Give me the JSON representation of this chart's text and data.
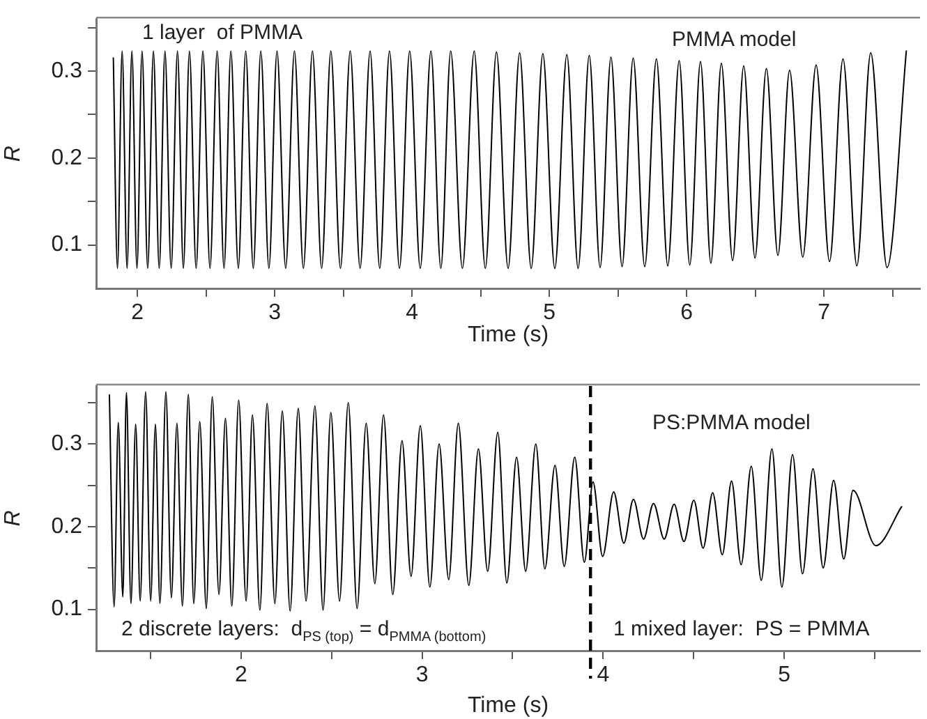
{
  "chart_data": [
    {
      "type": "line",
      "xlabel": "Time (s)",
      "ylabel": "R",
      "color": "#000000",
      "marker": "none",
      "line_style": "solid",
      "annotations": [
        "1 layer  of PMMA",
        "PMMA model"
      ],
      "xlim": [
        1.7,
        7.7
      ],
      "ylim": [
        0.05,
        0.36
      ],
      "xticks": [
        2,
        {
          "value": 2.5,
          "label": null
        },
        3,
        {
          "value": 3.5,
          "label": null
        },
        4,
        {
          "value": 4.5,
          "label": null
        },
        5,
        {
          "value": 5.5,
          "label": null
        },
        6,
        {
          "value": 6.5,
          "label": null
        },
        7,
        {
          "value": 7.5,
          "label": null
        }
      ],
      "yticks": [
        0.1,
        {
          "value": 0.15,
          "label": null
        },
        0.2,
        {
          "value": 0.25,
          "label": null
        },
        0.3,
        {
          "value": 0.35,
          "label": null
        }
      ],
      "x": [
        1.825,
        1.855,
        1.889,
        1.925,
        1.96,
        1.997,
        2.034,
        2.075,
        2.117,
        2.159,
        2.201,
        2.246,
        2.292,
        2.335,
        2.379,
        2.428,
        2.477,
        2.529,
        2.581,
        2.631,
        2.681,
        2.735,
        2.789,
        2.844,
        2.899,
        2.958,
        3.017,
        3.08,
        3.144,
        3.209,
        3.275,
        3.342,
        3.409,
        3.479,
        3.55,
        3.622,
        3.695,
        3.765,
        3.836,
        3.909,
        3.983,
        4.06,
        4.138,
        4.21,
        4.282,
        4.367,
        4.453,
        4.534,
        4.615,
        4.7,
        4.784,
        4.868,
        4.953,
        5.04,
        5.128,
        5.21,
        5.291,
        5.37,
        5.449,
        5.53,
        5.611,
        5.695,
        5.78,
        5.863,
        5.946,
        6.023,
        6.101,
        6.177,
        6.253,
        6.335,
        6.416,
        6.498,
        6.581,
        6.665,
        6.75,
        6.846,
        6.943,
        7.041,
        7.139,
        7.24,
        7.341,
        7.46,
        7.6
      ],
      "values": [
        0.315,
        0.073,
        0.323,
        0.073,
        0.323,
        0.073,
        0.323,
        0.073,
        0.323,
        0.073,
        0.323,
        0.073,
        0.323,
        0.073,
        0.323,
        0.073,
        0.323,
        0.073,
        0.323,
        0.073,
        0.323,
        0.073,
        0.323,
        0.073,
        0.323,
        0.073,
        0.323,
        0.073,
        0.323,
        0.073,
        0.323,
        0.073,
        0.323,
        0.073,
        0.323,
        0.073,
        0.323,
        0.073,
        0.323,
        0.073,
        0.323,
        0.073,
        0.323,
        0.073,
        0.323,
        0.073,
        0.323,
        0.073,
        0.322,
        0.073,
        0.321,
        0.073,
        0.32,
        0.073,
        0.319,
        0.073,
        0.318,
        0.074,
        0.316,
        0.075,
        0.315,
        0.075,
        0.314,
        0.076,
        0.312,
        0.077,
        0.311,
        0.079,
        0.309,
        0.082,
        0.306,
        0.085,
        0.303,
        0.088,
        0.301,
        0.086,
        0.307,
        0.081,
        0.314,
        0.076,
        0.321,
        0.074,
        0.323
      ]
    },
    {
      "type": "line",
      "xlabel": "Time (s)",
      "ylabel": "R",
      "color": "#000000",
      "marker": "none",
      "line_style": "solid",
      "annotations": [
        "PS:PMMA model",
        "2 discrete layers:  d$_{PS (top)}$ = d$_{PMMA (bottom)}$",
        "1 mixed layer:  PS = PMMA"
      ],
      "ref_lines": [
        {
          "axis": "x",
          "value": 3.93,
          "label": null,
          "color": "#000000",
          "line_style": "dashed"
        }
      ],
      "xlim": [
        1.2,
        5.75
      ],
      "ylim": [
        0.05,
        0.37
      ],
      "xticks": [
        {
          "value": 1.5,
          "label": null
        },
        2,
        {
          "value": 2.5,
          "label": null
        },
        3,
        {
          "value": 3.5,
          "label": null
        },
        4,
        {
          "value": 4.5,
          "label": null
        },
        5,
        {
          "value": 5.5,
          "label": null
        }
      ],
      "yticks": [
        0.1,
        {
          "value": 0.15,
          "label": null
        },
        0.2,
        {
          "value": 0.25,
          "label": null
        },
        0.3,
        {
          "value": 0.35,
          "label": null
        }
      ],
      "x": [
        1.273,
        1.299,
        1.322,
        1.347,
        1.367,
        1.392,
        1.418,
        1.443,
        1.473,
        1.501,
        1.527,
        1.552,
        1.585,
        1.615,
        1.646,
        1.676,
        1.709,
        1.739,
        1.772,
        1.808,
        1.841,
        1.878,
        1.914,
        1.949,
        1.987,
        2.028,
        2.063,
        2.104,
        2.144,
        2.187,
        2.228,
        2.271,
        2.316,
        2.359,
        2.408,
        2.453,
        2.496,
        2.544,
        2.592,
        2.641,
        2.691,
        2.739,
        2.787,
        2.838,
        2.889,
        2.939,
        2.99,
        3.043,
        3.094,
        3.147,
        3.2,
        3.258,
        3.311,
        3.362,
        3.418,
        3.468,
        3.522,
        3.572,
        3.628,
        3.678,
        3.734,
        3.785,
        3.843,
        3.896,
        3.944,
        3.997,
        4.058,
        4.114,
        4.167,
        4.223,
        4.278,
        4.337,
        4.392,
        4.446,
        4.501,
        4.552,
        4.605,
        4.658,
        4.709,
        4.762,
        4.818,
        4.873,
        4.932,
        4.987,
        5.046,
        5.101,
        5.159,
        5.215,
        5.273,
        5.329,
        5.38,
        5.506,
        5.648
      ],
      "values": [
        0.359,
        0.103,
        0.326,
        0.115,
        0.362,
        0.107,
        0.324,
        0.11,
        0.363,
        0.11,
        0.324,
        0.107,
        0.363,
        0.114,
        0.325,
        0.104,
        0.36,
        0.107,
        0.327,
        0.101,
        0.357,
        0.118,
        0.331,
        0.104,
        0.353,
        0.11,
        0.335,
        0.099,
        0.349,
        0.107,
        0.34,
        0.098,
        0.343,
        0.11,
        0.346,
        0.099,
        0.338,
        0.11,
        0.35,
        0.101,
        0.325,
        0.131,
        0.335,
        0.118,
        0.304,
        0.14,
        0.322,
        0.127,
        0.3,
        0.136,
        0.325,
        0.129,
        0.294,
        0.146,
        0.314,
        0.132,
        0.284,
        0.146,
        0.3,
        0.149,
        0.274,
        0.152,
        0.284,
        0.157,
        0.254,
        0.164,
        0.242,
        0.18,
        0.233,
        0.185,
        0.228,
        0.185,
        0.227,
        0.182,
        0.232,
        0.174,
        0.241,
        0.166,
        0.255,
        0.154,
        0.273,
        0.135,
        0.294,
        0.127,
        0.287,
        0.143,
        0.27,
        0.15,
        0.256,
        0.161,
        0.244,
        0.177,
        0.224
      ]
    }
  ]
}
